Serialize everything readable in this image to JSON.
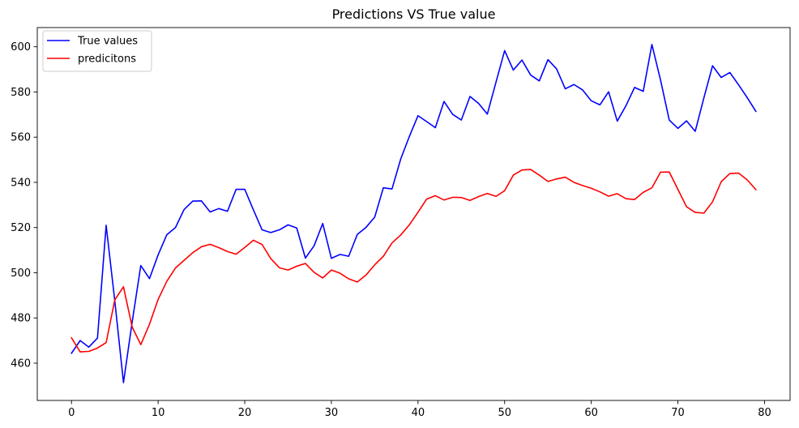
{
  "chart_data": {
    "type": "line",
    "title": "Predictions VS True value",
    "xlabel": "",
    "ylabel": "",
    "xlim": [
      -3.95,
      82.95
    ],
    "ylim": [
      443.5,
      608.5
    ],
    "x_ticks": [
      0,
      10,
      20,
      30,
      40,
      50,
      60,
      70,
      80
    ],
    "y_ticks": [
      460,
      480,
      500,
      520,
      540,
      560,
      580,
      600
    ],
    "x_tick_labels": [
      "0",
      "10",
      "20",
      "30",
      "40",
      "50",
      "60",
      "70",
      "80"
    ],
    "y_tick_labels": [
      "460",
      "480",
      "500",
      "520",
      "540",
      "560",
      "580",
      "600"
    ],
    "grid": false,
    "legend_position": "top-left",
    "series": [
      {
        "name": "True values",
        "color": "#0000ff",
        "values": [
          464.4,
          470.0,
          467.1,
          471.1,
          521.0,
          487.5,
          451.4,
          478.1,
          503.2,
          497.4,
          507.9,
          516.8,
          520.0,
          528.0,
          531.7,
          531.8,
          526.9,
          528.4,
          527.2,
          536.9,
          536.9,
          527.8,
          519.0,
          517.8,
          519.0,
          521.2,
          519.8,
          506.5,
          511.9,
          521.8,
          506.4,
          508.1,
          507.3,
          517.0,
          520.1,
          524.6,
          537.6,
          537.1,
          550.3,
          560.3,
          569.5,
          566.9,
          564.2,
          575.8,
          570.1,
          567.6,
          578.0,
          574.9,
          570.2,
          584.3,
          598.3,
          589.7,
          594.1,
          587.5,
          584.9,
          594.3,
          590.2,
          581.4,
          583.3,
          580.9,
          576.1,
          574.3,
          580.1,
          567.1,
          573.9,
          582.0,
          580.3,
          601.0,
          585.2,
          567.6,
          563.9,
          567.2,
          562.6,
          577.4,
          591.6,
          586.4,
          588.6,
          583.2,
          577.5,
          571.4
        ]
      },
      {
        "name": "predicitons",
        "color": "#ff0000",
        "values": [
          471.2,
          465.0,
          465.2,
          466.7,
          469.1,
          488.0,
          493.8,
          476.0,
          468.2,
          477.2,
          488.2,
          496.2,
          502.1,
          505.5,
          508.9,
          511.5,
          512.6,
          511.1,
          509.4,
          508.2,
          511.2,
          514.4,
          512.5,
          506.3,
          502.2,
          501.2,
          502.9,
          504.1,
          500.2,
          497.7,
          501.2,
          499.8,
          497.3,
          495.9,
          499.0,
          503.5,
          507.3,
          513.2,
          516.7,
          521.2,
          526.8,
          532.6,
          534.1,
          532.2,
          533.4,
          533.3,
          532.0,
          533.7,
          535.1,
          533.8,
          536.3,
          543.2,
          545.5,
          545.7,
          543.2,
          540.4,
          541.5,
          542.3,
          540.0,
          538.6,
          537.4,
          535.8,
          533.9,
          535.0,
          532.8,
          532.4,
          535.6,
          537.6,
          544.5,
          544.6,
          536.9,
          529.2,
          526.7,
          526.4,
          531.4,
          540.3,
          543.9,
          544.1,
          541.1,
          536.8
        ]
      }
    ]
  }
}
